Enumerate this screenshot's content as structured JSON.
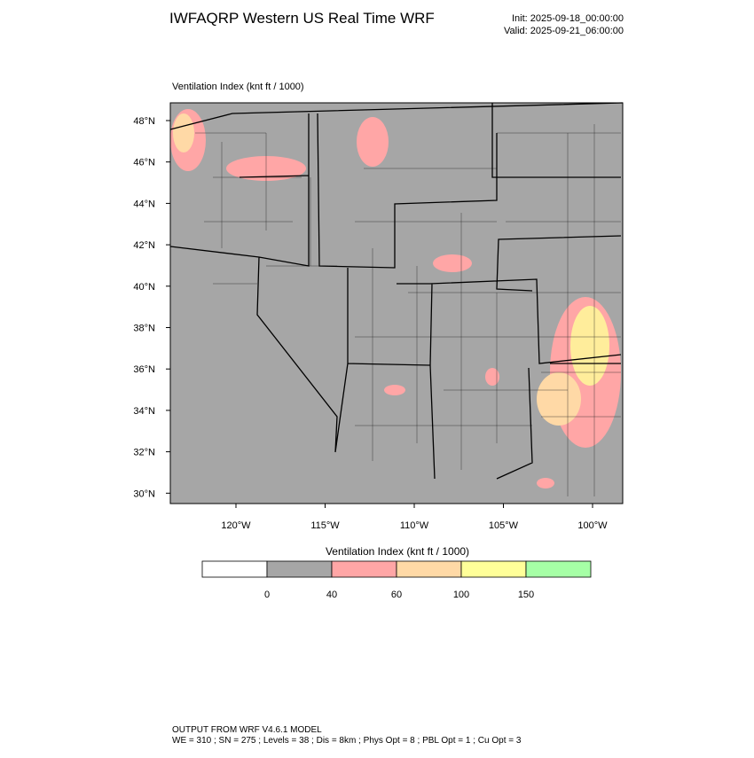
{
  "header": {
    "title": "IWFAQRP Western US Real Time WRF",
    "init": "Init: 2025-09-18_00:00:00",
    "valid": "Valid: 2025-09-21_06:00:00"
  },
  "map": {
    "subtitle": "Ventilation Index   (knt ft / 1000)",
    "lat_labels": [
      "48°N",
      "46°N",
      "44°N",
      "42°N",
      "40°N",
      "38°N",
      "36°N",
      "34°N",
      "32°N",
      "30°N"
    ],
    "lon_labels": [
      "120°W",
      "115°W",
      "110°W",
      "105°W",
      "100°W"
    ]
  },
  "colorbar": {
    "title": "Ventilation Index  (knt ft / 1000)",
    "levels": [
      0,
      40,
      60,
      100,
      150
    ],
    "colors": [
      "#ffffff",
      "#a6a6a6",
      "#ffa6a6",
      "#ffd9a6",
      "#ffff99",
      "#a6ffa6"
    ]
  },
  "footer": {
    "line1": "OUTPUT FROM WRF V4.6.1 MODEL",
    "line2": "WE = 310 ; SN = 275 ; Levels = 38 ; Dis = 8km ; Phys Opt = 8 ; PBL Opt = 1 ; Cu Opt = 3"
  }
}
